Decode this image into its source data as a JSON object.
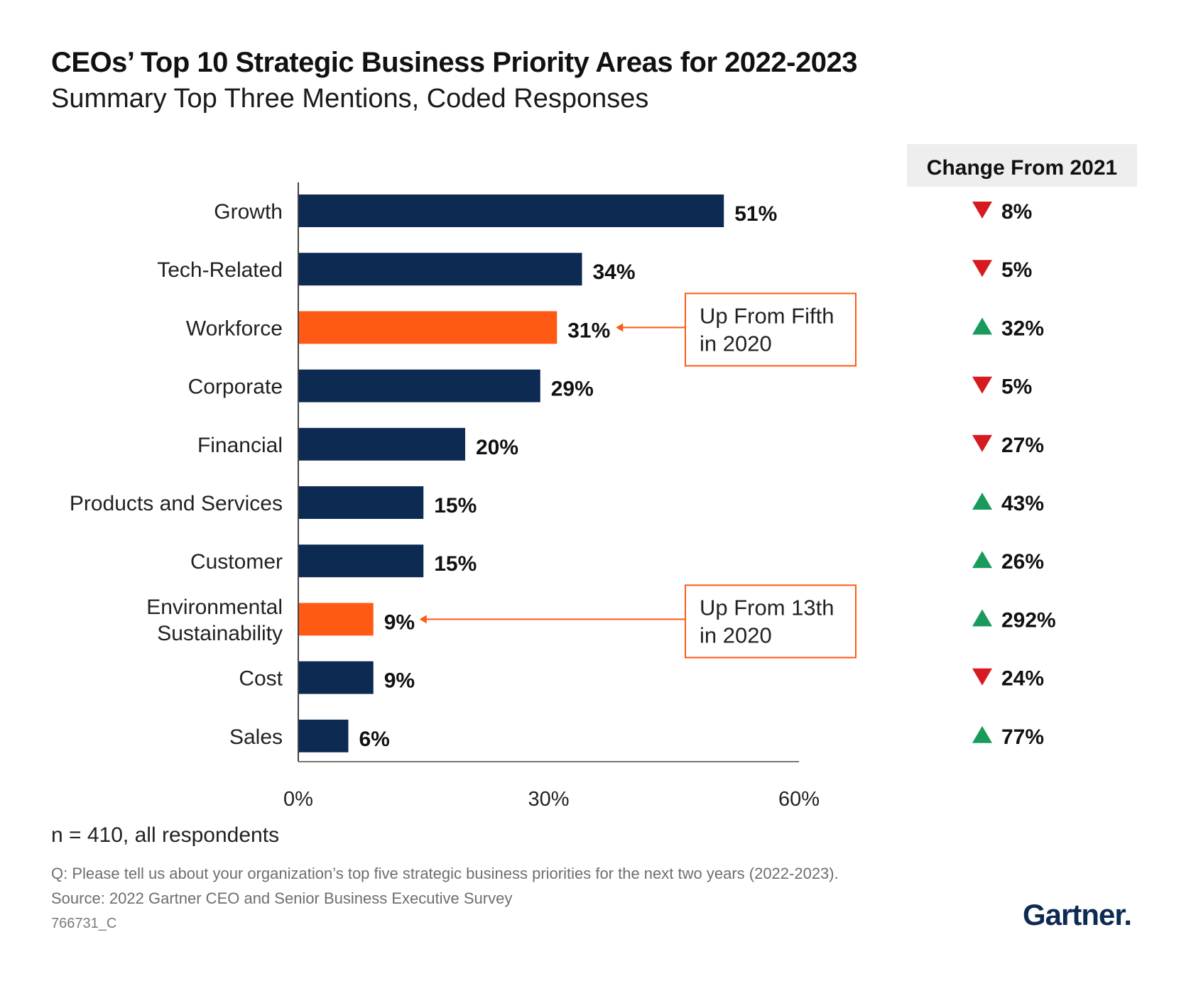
{
  "chart_data": {
    "type": "bar",
    "orientation": "horizontal",
    "title": "CEOs’ Top 10 Strategic Business Priority Areas for 2022-2023",
    "subtitle": "Summary Top Three Mentions, Coded Responses",
    "categories": [
      "Growth",
      "Tech-Related",
      "Workforce",
      "Corporate",
      "Financial",
      "Products and Services",
      "Customer",
      "Environmental Sustainability",
      "Cost",
      "Sales"
    ],
    "category_lines": [
      [
        "Growth"
      ],
      [
        "Tech-Related"
      ],
      [
        "Workforce"
      ],
      [
        "Corporate"
      ],
      [
        "Financial"
      ],
      [
        "Products and Services"
      ],
      [
        "Customer"
      ],
      [
        "Environmental",
        "Sustainability"
      ],
      [
        "Cost"
      ],
      [
        "Sales"
      ]
    ],
    "values": [
      51,
      34,
      31,
      29,
      20,
      15,
      15,
      9,
      9,
      6
    ],
    "value_labels": [
      "51%",
      "34%",
      "31%",
      "29%",
      "20%",
      "15%",
      "15%",
      "9%",
      "9%",
      "6%"
    ],
    "highlighted": [
      false,
      false,
      true,
      false,
      false,
      false,
      false,
      true,
      false,
      false
    ],
    "colors": {
      "default": "#0d2a52",
      "highlight": "#ff5a14",
      "up": "#1a9a5a",
      "down": "#d71920",
      "callout": "#ff5a14"
    },
    "xlim": [
      0,
      60
    ],
    "xticks": [
      0,
      30,
      60
    ],
    "xtick_labels": [
      "0%",
      "30%",
      "60%"
    ],
    "xlabel": "",
    "ylabel": "",
    "grid": false,
    "change_from_2021": {
      "header": "Change From 2021",
      "values": [
        8,
        5,
        32,
        5,
        27,
        43,
        26,
        292,
        24,
        77
      ],
      "labels": [
        "8%",
        "5%",
        "32%",
        "5%",
        "27%",
        "43%",
        "26%",
        "292%",
        "24%",
        "77%"
      ],
      "direction": [
        "down",
        "down",
        "up",
        "down",
        "down",
        "up",
        "up",
        "up",
        "down",
        "up"
      ]
    },
    "annotations": [
      {
        "category_index": 2,
        "lines": [
          "Up From Fifth",
          "in 2020"
        ]
      },
      {
        "category_index": 7,
        "lines": [
          "Up From 13th",
          "in 2020"
        ]
      }
    ]
  },
  "footer": {
    "sample": "n = 410, all respondents",
    "question": "Q: Please tell us about your organization’s top five strategic business priorities for the next two years (2022-2023).",
    "source": "Source: 2022 Gartner CEO and Senior Business Executive Survey",
    "doc_id": "766731_C"
  },
  "logo": {
    "text": "Gartner",
    "dot": "."
  }
}
